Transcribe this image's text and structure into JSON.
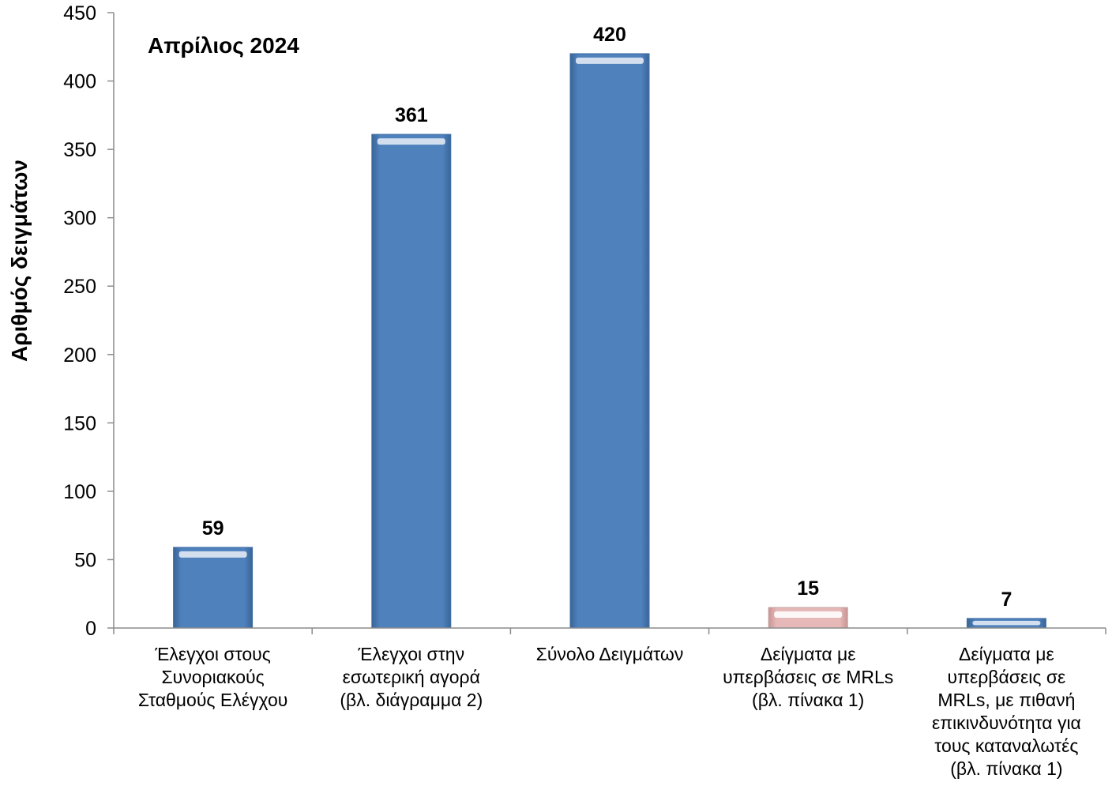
{
  "chart_data": {
    "type": "bar",
    "annotation": "Απρίλιος 2024",
    "ylabel": "Αριθμός δειγμάτων",
    "xlabel": "",
    "ylim": [
      0,
      450
    ],
    "yticks": [
      0,
      50,
      100,
      150,
      200,
      250,
      300,
      350,
      400,
      450
    ],
    "grid": false,
    "legend": "none",
    "categories": [
      [
        "Έλεγχοι στους",
        "Συνοριακούς",
        "Σταθμούς Ελέγχου"
      ],
      [
        "Έλεγχοι στην",
        "εσωτερική αγορά",
        "(βλ. διάγραμμα 2)"
      ],
      [
        "Σύνολο Δειγμάτων"
      ],
      [
        "Δείγματα με",
        "υπερβάσεις σε MRLs",
        "(βλ. πίνακα 1)"
      ],
      [
        "Δείγματα με",
        "υπερβάσεις σε",
        "MRLs, με πιθανή",
        "επικινδυνότητα για",
        "τους καταναλωτές",
        "(βλ. πίνακα 1)"
      ]
    ],
    "values": [
      59,
      361,
      420,
      15,
      7
    ],
    "bar_colors": [
      "#4f81bd",
      "#4f81bd",
      "#4f81bd",
      "#e6b9b8",
      "#4f81bd"
    ],
    "data_labels": [
      "59",
      "361",
      "420",
      "15",
      "7"
    ]
  }
}
